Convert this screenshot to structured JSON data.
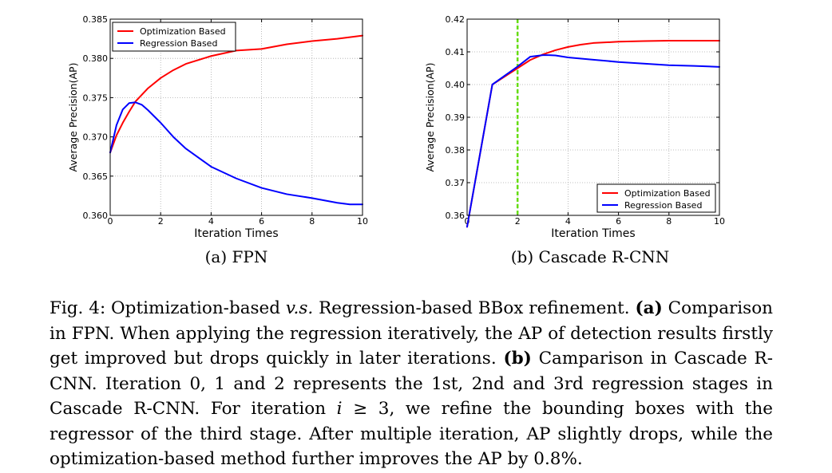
{
  "chart_data": [
    {
      "type": "line",
      "title": "",
      "xlabel": "Iteration Times",
      "ylabel": "Average Precision(AP)",
      "xlim": [
        0,
        10
      ],
      "ylim": [
        0.36,
        0.385
      ],
      "xticks": [
        "0",
        "2",
        "4",
        "6",
        "8",
        "10"
      ],
      "yticks": [
        "0.360",
        "0.365",
        "0.370",
        "0.375",
        "0.380",
        "0.385"
      ],
      "grid": true,
      "legend_position": "upper-left",
      "series": [
        {
          "name": "Optimization Based",
          "color": "#ff0000",
          "x": [
            0,
            0.25,
            0.5,
            0.75,
            1,
            1.5,
            2,
            2.5,
            3,
            4,
            5,
            5.5,
            6,
            7,
            8,
            9,
            10
          ],
          "y": [
            0.368,
            0.3702,
            0.3718,
            0.3732,
            0.3745,
            0.3762,
            0.3775,
            0.3785,
            0.3793,
            0.3803,
            0.381,
            0.3811,
            0.3812,
            0.3818,
            0.3822,
            0.3825,
            0.3829
          ]
        },
        {
          "name": "Regression Based",
          "color": "#0000ff",
          "x": [
            0,
            0.25,
            0.5,
            0.75,
            1,
            1.25,
            1.5,
            2,
            2.5,
            3,
            4,
            5,
            6,
            7,
            8,
            9,
            9.5,
            10
          ],
          "y": [
            0.368,
            0.3715,
            0.3735,
            0.3743,
            0.3744,
            0.3741,
            0.3734,
            0.3718,
            0.37,
            0.3685,
            0.3662,
            0.3647,
            0.3635,
            0.3627,
            0.3622,
            0.3616,
            0.3614,
            0.3614
          ]
        }
      ]
    },
    {
      "type": "line",
      "title": "",
      "xlabel": "Iteration Times",
      "ylabel": "Average Precision(AP)",
      "xlim": [
        0,
        10
      ],
      "ylim": [
        0.36,
        0.42
      ],
      "xticks": [
        "0",
        "2",
        "4",
        "6",
        "8",
        "10"
      ],
      "yticks": [
        "0.36",
        "0.37",
        "0.38",
        "0.39",
        "0.40",
        "0.41",
        "0.42"
      ],
      "grid": true,
      "legend_position": "lower-right",
      "vline": {
        "x": 2,
        "color": "#66dd11",
        "style": "dashed"
      },
      "series": [
        {
          "name": "Optimization Based",
          "color": "#ff0000",
          "x": [
            0,
            1,
            2,
            2.5,
            3,
            3.5,
            4,
            4.5,
            5,
            6,
            7,
            8,
            9,
            10
          ],
          "y": [
            0.3565,
            0.4,
            0.405,
            0.4075,
            0.4092,
            0.4105,
            0.4115,
            0.4122,
            0.4127,
            0.4131,
            0.4133,
            0.4134,
            0.4134,
            0.4134
          ]
        },
        {
          "name": "Regression Based",
          "color": "#0000ff",
          "x": [
            0,
            1,
            2,
            2.5,
            3,
            3.25,
            3.5,
            4,
            5,
            6,
            7,
            8,
            9,
            10
          ],
          "y": [
            0.3565,
            0.4,
            0.4055,
            0.4085,
            0.409,
            0.409,
            0.4089,
            0.4083,
            0.4076,
            0.4069,
            0.4064,
            0.4059,
            0.4057,
            0.4054
          ]
        }
      ]
    }
  ],
  "subcaptions": {
    "a": "(a) FPN",
    "b": "(b) Cascade R-CNN"
  },
  "caption": {
    "lead": "Fig. 4: Optimization-based ",
    "vs": "v.s.",
    "p1": " Regression-based BBox refinement. ",
    "a_label": "(a)",
    "p2": " Comparison in FPN. When applying the regression iteratively, the AP of detection results firstly get improved but drops quickly in later iterations. ",
    "b_label": "(b)",
    "p3": " Camparison in Cascade R-CNN. Iteration 0, 1 and 2 represents the 1st, 2nd and 3rd regression stages in Cascade R-CNN. For iteration ",
    "math_var": "i",
    "math_rest": " ≥ 3",
    "p4": ", we refine the bounding boxes with the regressor of the third stage. After multiple iteration, AP slightly drops, while the optimization-based method further improves the AP by 0.8%."
  }
}
